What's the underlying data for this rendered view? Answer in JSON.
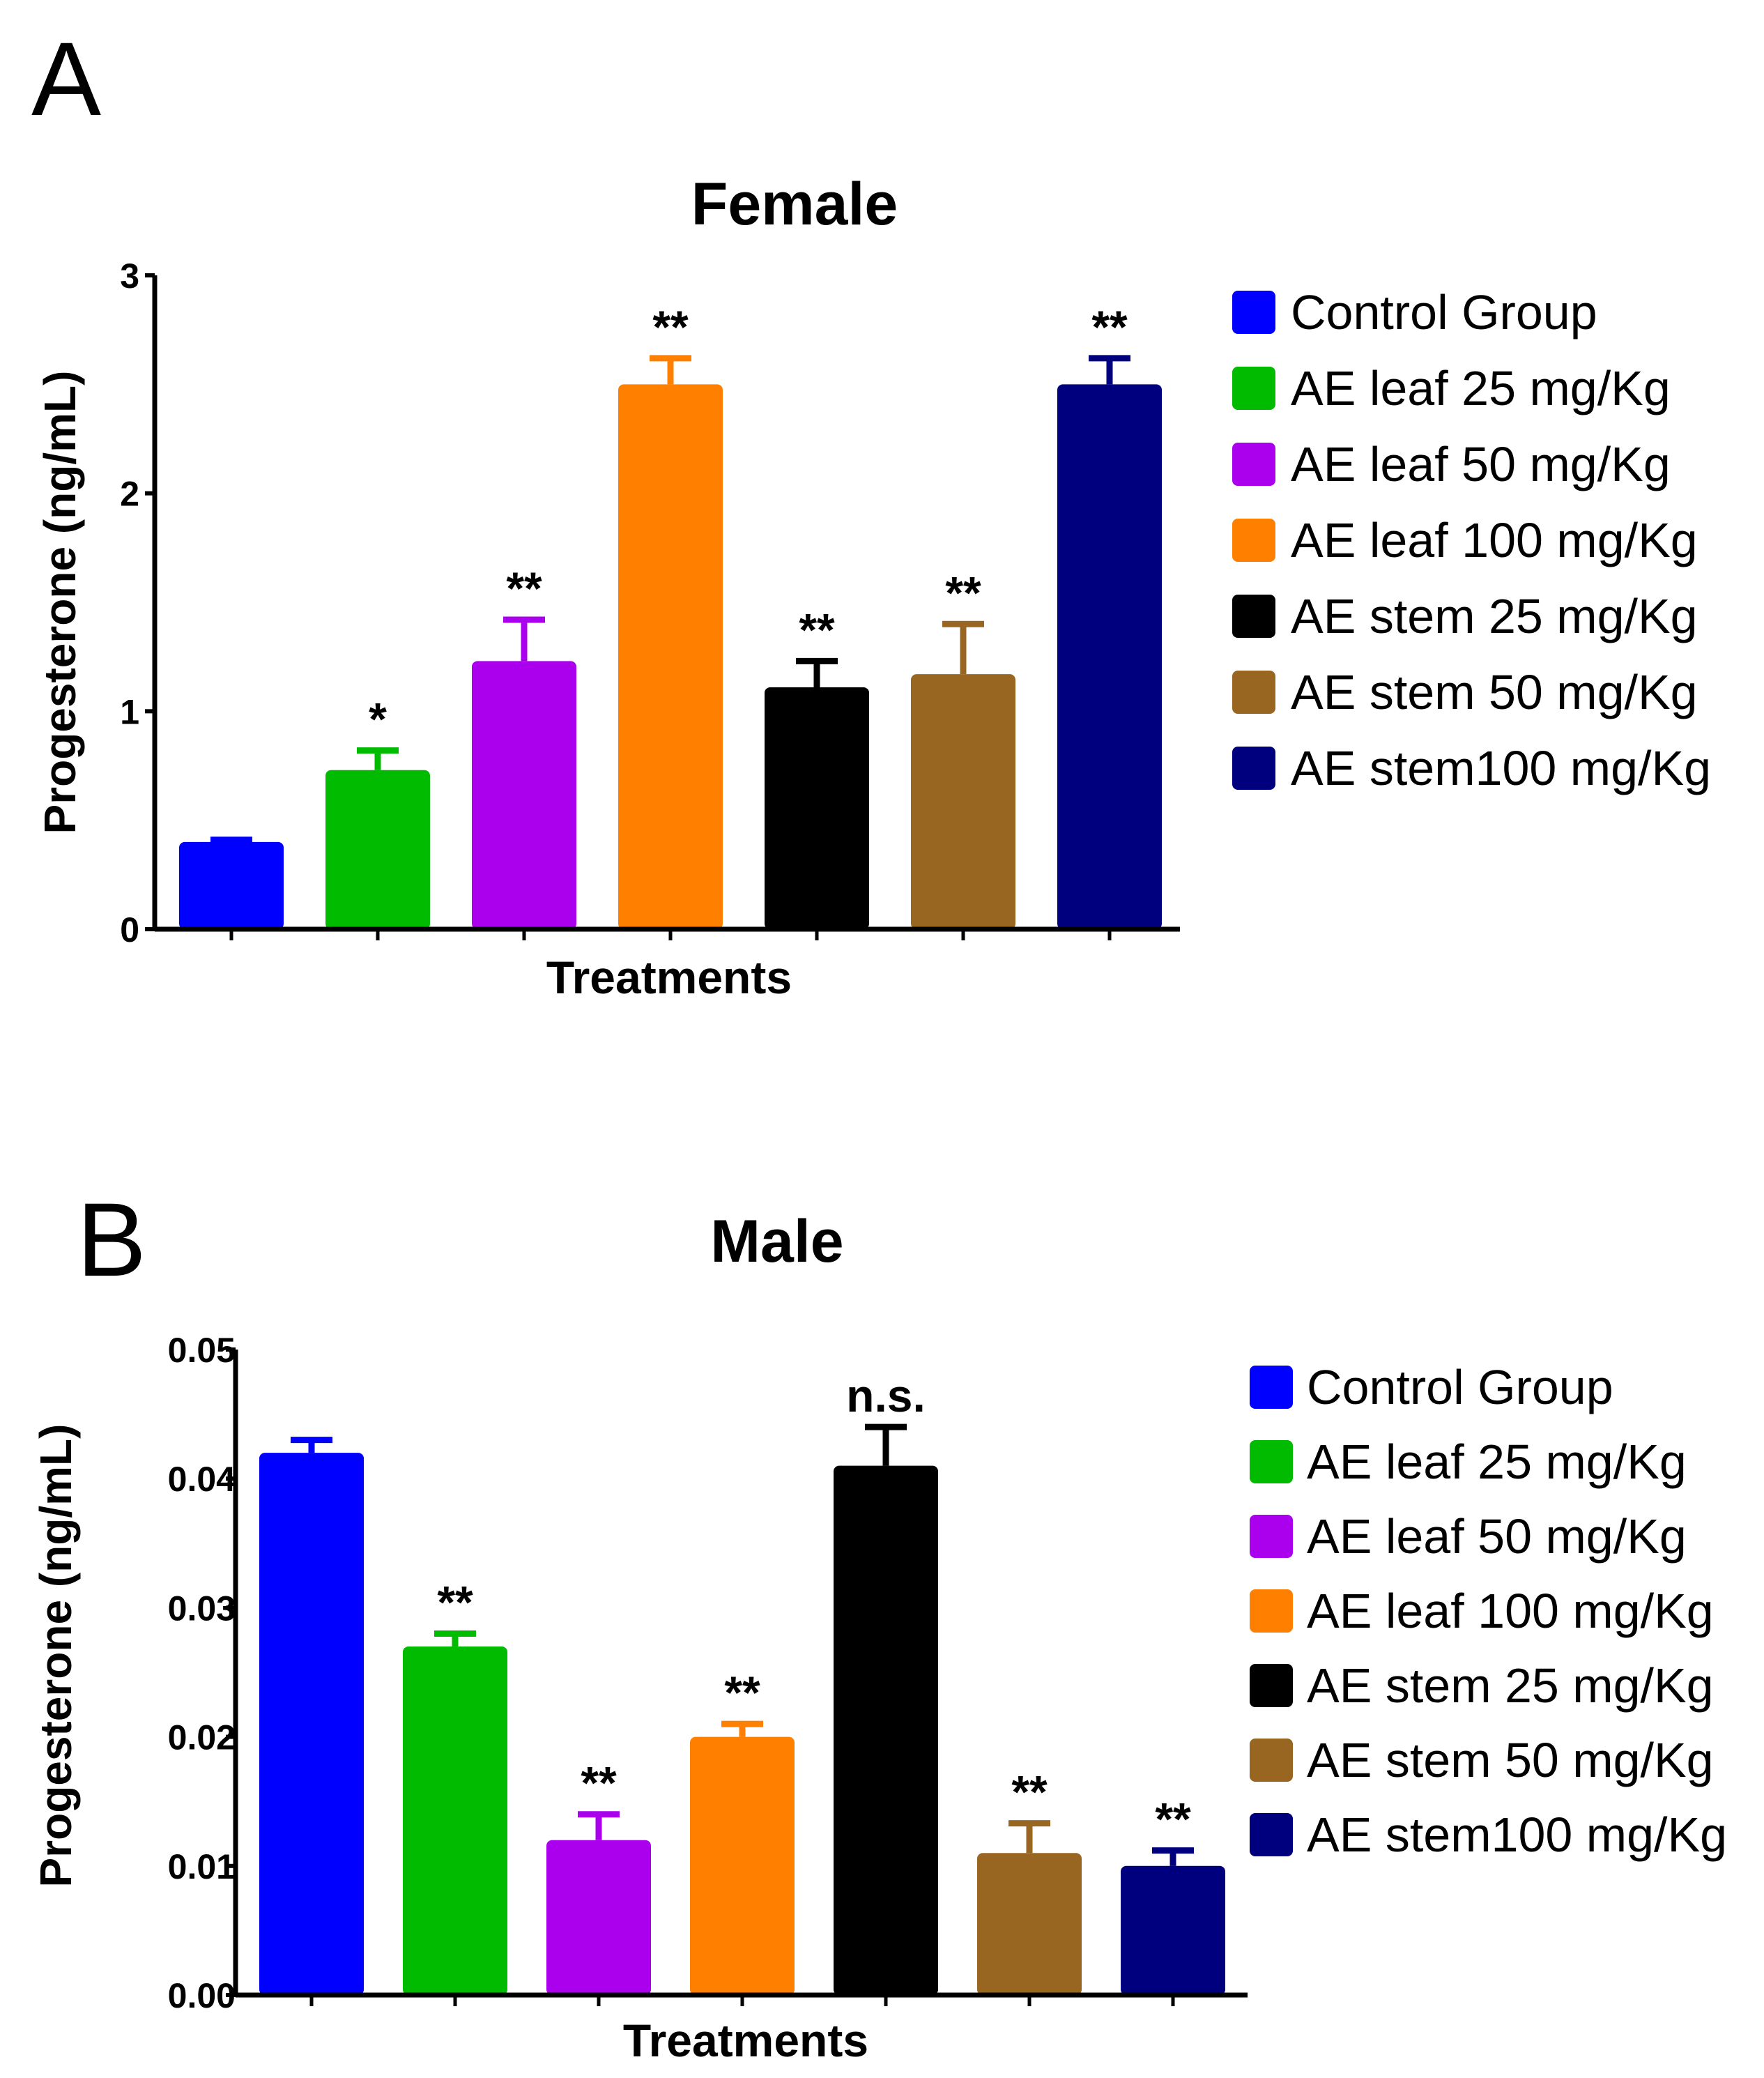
{
  "chart_data": [
    {
      "panel_label": "A",
      "type": "bar",
      "title": "Female",
      "xlabel": "Treatments",
      "ylabel": "Progesterone (ng/mL)",
      "ylim": [
        0,
        3
      ],
      "yticks": [
        "0",
        "1",
        "2",
        "3"
      ],
      "ytick_values": [
        0,
        1,
        2,
        3
      ],
      "grid": false,
      "legend_position": "right",
      "series": [
        {
          "name": "Control Group",
          "value": 0.4,
          "error": 0.01,
          "color": "#0000ff",
          "annotation": ""
        },
        {
          "name": "AE leaf 25 mg/Kg",
          "value": 0.73,
          "error": 0.09,
          "color": "#00bb00",
          "annotation": "*"
        },
        {
          "name": "AE leaf 50 mg/Kg",
          "value": 1.23,
          "error": 0.19,
          "color": "#aa00ee",
          "annotation": "**"
        },
        {
          "name": "AE leaf 100 mg/Kg",
          "value": 2.5,
          "error": 0.12,
          "color": "#ff7f00",
          "annotation": "**"
        },
        {
          "name": "AE stem 25 mg/Kg",
          "value": 1.11,
          "error": 0.12,
          "color": "#000000",
          "annotation": "**"
        },
        {
          "name": "AE stem 50 mg/Kg",
          "value": 1.17,
          "error": 0.23,
          "color": "#996622",
          "annotation": "**"
        },
        {
          "name": "AE stem100 mg/Kg",
          "value": 2.5,
          "error": 0.12,
          "color": "#00007f",
          "annotation": "**"
        }
      ]
    },
    {
      "panel_label": "B",
      "type": "bar",
      "title": "Male",
      "xlabel": "Treatments",
      "ylabel": "Progesterone (ng/mL)",
      "ylim": [
        0,
        0.05
      ],
      "yticks": [
        "0.00",
        "0.01",
        "0.02",
        "0.03",
        "0.04",
        "0.05"
      ],
      "ytick_values": [
        0,
        0.01,
        0.02,
        0.03,
        0.04,
        0.05
      ],
      "grid": false,
      "legend_position": "right",
      "series": [
        {
          "name": "Control Group",
          "value": 0.042,
          "error": 0.001,
          "color": "#0000ff",
          "annotation": ""
        },
        {
          "name": "AE leaf 25 mg/Kg",
          "value": 0.027,
          "error": 0.001,
          "color": "#00bb00",
          "annotation": "**"
        },
        {
          "name": "AE leaf 50 mg/Kg",
          "value": 0.012,
          "error": 0.002,
          "color": "#aa00ee",
          "annotation": "**"
        },
        {
          "name": "AE leaf 100 mg/Kg",
          "value": 0.02,
          "error": 0.001,
          "color": "#ff7f00",
          "annotation": "**"
        },
        {
          "name": "AE stem 25 mg/Kg",
          "value": 0.041,
          "error": 0.003,
          "color": "#000000",
          "annotation": "n.s."
        },
        {
          "name": "AE stem 50 mg/Kg",
          "value": 0.011,
          "error": 0.0023,
          "color": "#996622",
          "annotation": "**"
        },
        {
          "name": "AE stem100 mg/Kg",
          "value": 0.01,
          "error": 0.0012,
          "color": "#00007f",
          "annotation": "**"
        }
      ]
    }
  ]
}
